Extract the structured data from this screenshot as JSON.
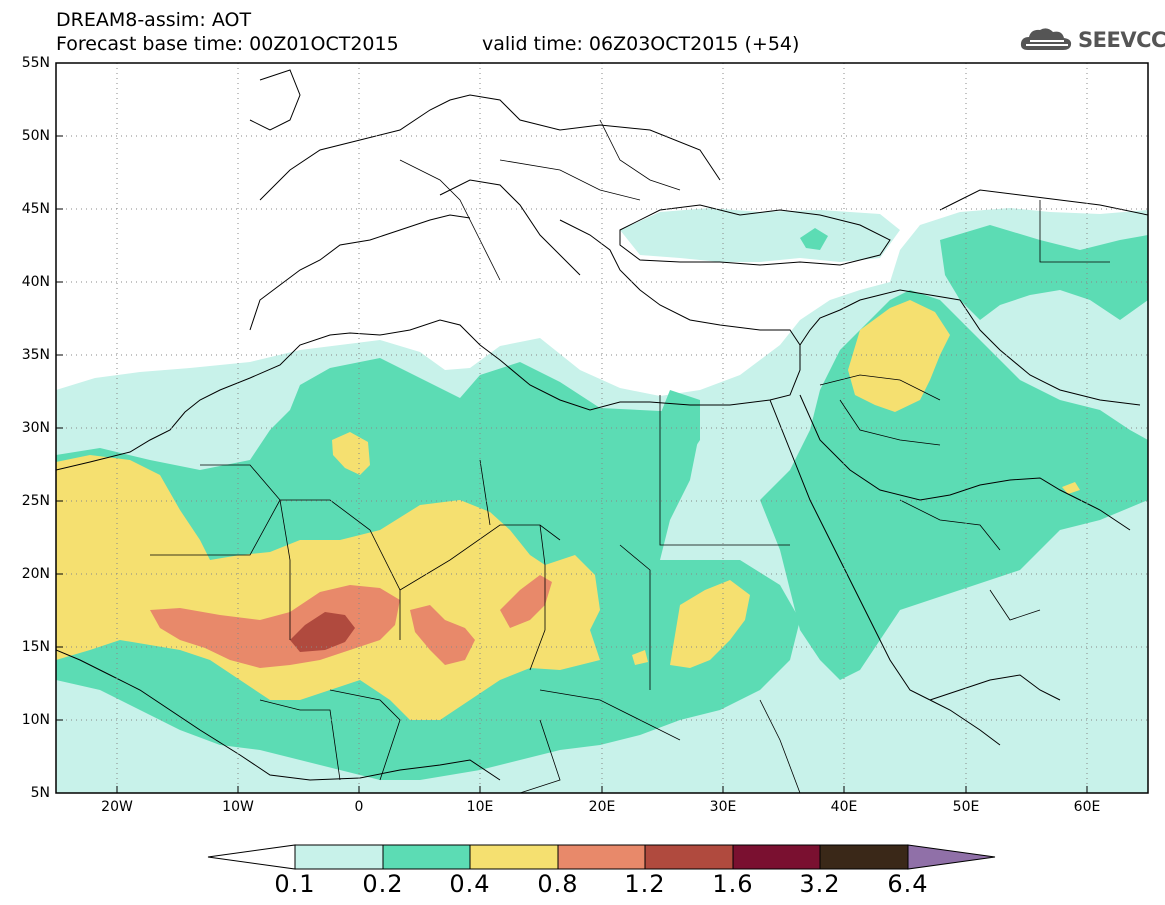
{
  "header": {
    "line1": "DREAM8-assim: AOT",
    "line2": "Forecast base time: 00Z01OCT2015",
    "valid": "valid time: 06Z03OCT2015 (+54)",
    "logo_text": "SEEVCCC"
  },
  "map": {
    "lat_labels": [
      "55N",
      "50N",
      "45N",
      "40N",
      "35N",
      "30N",
      "25N",
      "20N",
      "15N",
      "10N",
      "5N"
    ],
    "lon_labels": [
      "20W",
      "10W",
      "0",
      "10E",
      "20E",
      "30E",
      "40E",
      "50E",
      "60E"
    ],
    "lat_range": [
      5,
      55
    ],
    "lon_range": [
      -25,
      65
    ],
    "grid": true
  },
  "colorbar": {
    "levels": [
      "0.1",
      "0.2",
      "0.4",
      "0.8",
      "1.2",
      "1.6",
      "3.2",
      "6.4"
    ],
    "colors": [
      "#ffffff",
      "#c8f2ea",
      "#5cdcb4",
      "#f5e070",
      "#e8896a",
      "#b04a3e",
      "#7a1030",
      "#3a2818",
      "#9070a8"
    ]
  }
}
